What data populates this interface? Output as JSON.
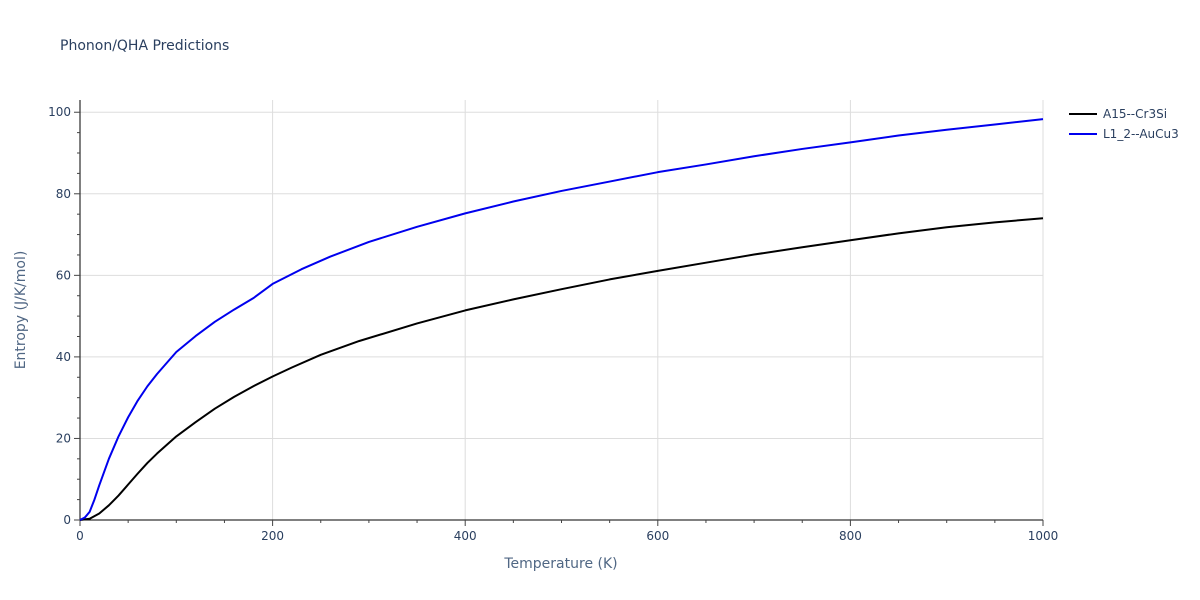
{
  "chart_data": {
    "type": "line",
    "title": "Phonon/QHA Predictions",
    "xlabel": "Temperature (K)",
    "ylabel": "Entropy (J/K/mol)",
    "xlim": [
      0,
      1000
    ],
    "ylim": [
      0,
      103
    ],
    "xticks": [
      0,
      200,
      400,
      600,
      800,
      1000
    ],
    "yticks": [
      0,
      20,
      40,
      60,
      80,
      100
    ],
    "grid": true,
    "legend_position": "top-right",
    "series": [
      {
        "name": "A15--Cr3Si",
        "color": "#000000",
        "x": [
          0,
          10,
          20,
          30,
          40,
          50,
          60,
          70,
          80,
          100,
          120,
          140,
          160,
          180,
          200,
          220,
          250,
          290,
          350,
          400,
          450,
          500,
          550,
          600,
          650,
          700,
          750,
          800,
          850,
          900,
          950,
          1000
        ],
        "y": [
          0,
          0.3,
          1.6,
          3.6,
          6.0,
          8.7,
          11.4,
          14.0,
          16.3,
          20.5,
          24.0,
          27.3,
          30.2,
          32.8,
          35.2,
          37.4,
          40.5,
          43.9,
          48.2,
          51.4,
          54.1,
          56.6,
          59.0,
          61.1,
          63.1,
          65.1,
          66.9,
          68.6,
          70.3,
          71.8,
          73.0,
          74.0
        ]
      },
      {
        "name": "L1_2--AuCu3",
        "color": "#0000ee",
        "x": [
          0,
          5,
          10,
          15,
          20,
          30,
          40,
          50,
          60,
          70,
          80,
          100,
          120,
          140,
          160,
          180,
          200,
          230,
          260,
          300,
          350,
          400,
          450,
          500,
          550,
          600,
          650,
          700,
          750,
          800,
          850,
          900,
          950,
          1000
        ],
        "y": [
          0,
          0.6,
          2.0,
          5.0,
          8.5,
          15.0,
          20.5,
          25.2,
          29.3,
          32.8,
          35.8,
          41.2,
          45.1,
          48.6,
          51.6,
          54.4,
          57.9,
          61.5,
          64.6,
          68.2,
          71.9,
          75.2,
          78.1,
          80.7,
          83.0,
          85.3,
          87.2,
          89.2,
          91.0,
          92.6,
          94.3,
          95.7,
          97.0,
          98.3
        ]
      }
    ]
  }
}
